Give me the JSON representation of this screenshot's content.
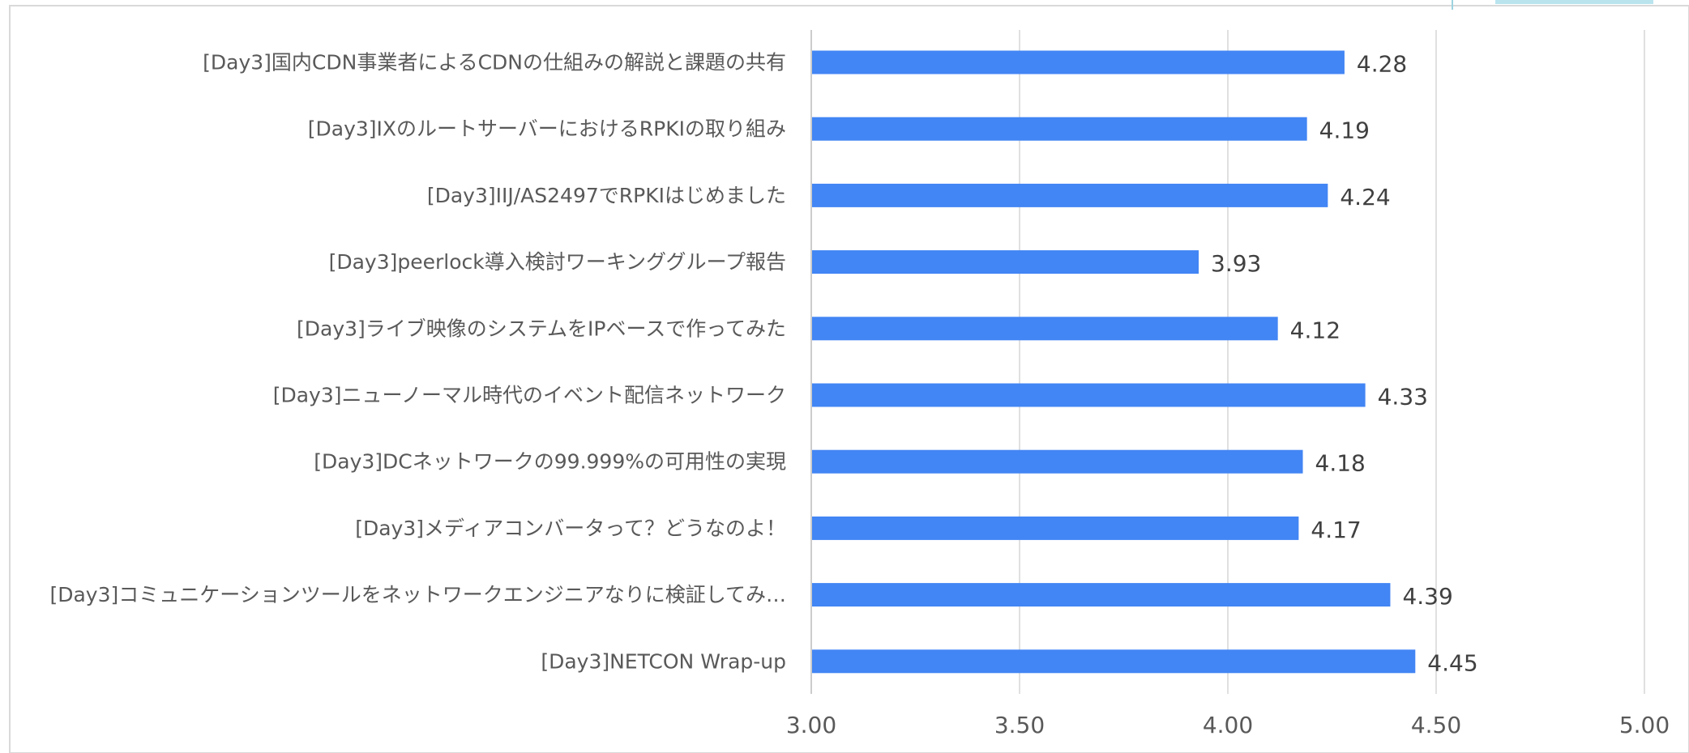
{
  "chart_data": {
    "type": "bar",
    "orientation": "horizontal",
    "title": "",
    "xlabel": "",
    "ylabel": "",
    "xlim": [
      3.0,
      5.0
    ],
    "ticks": [
      "3.00",
      "3.50",
      "4.00",
      "4.50",
      "5.00"
    ],
    "tick_values": [
      3.0,
      3.5,
      4.0,
      4.5,
      5.0
    ],
    "grid": true,
    "legend": "none",
    "bar_color": "#4285F4",
    "categories": [
      "[Day3]国内CDN事業者によるCDNの仕組みの解説と課題の共有",
      "[Day3]IXのルートサーバーにおけるRPKIの取り組み",
      "[Day3]IIJ/AS2497でRPKIはじめました",
      "[Day3]peerlock導入検討ワーキンググループ報告",
      "[Day3]ライブ映像のシステムをIPベースで作ってみた",
      "[Day3]ニューノーマル時代のイベント配信ネットワーク",
      "[Day3]DCネットワークの99.999%の可用性の実現",
      "[Day3]メディアコンバータって？どうなのよ！",
      "[Day3]コミュニケーションツールをネットワークエンジニアなりに検証してみ…",
      "[Day3]NETCON Wrap-up"
    ],
    "values": [
      4.28,
      4.19,
      4.24,
      3.93,
      4.12,
      4.33,
      4.18,
      4.17,
      4.39,
      4.45
    ],
    "value_labels": [
      "4.28",
      "4.19",
      "4.24",
      "3.93",
      "4.12",
      "4.33",
      "4.18",
      "4.17",
      "4.39",
      "4.45"
    ]
  }
}
